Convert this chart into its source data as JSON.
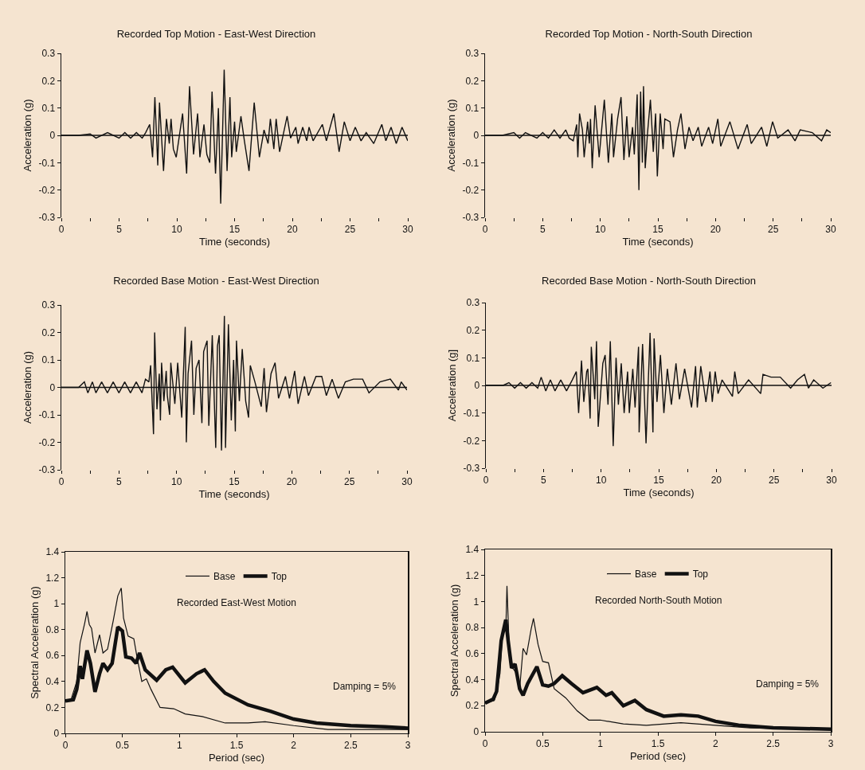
{
  "chart_data": [
    {
      "type": "line",
      "title": "Recorded Top Motion - East-West Direction",
      "xlabel": "Time (seconds)",
      "ylabel": "Acceleration (g)",
      "color": "#111111",
      "grid": false,
      "ref_lines": [
        {
          "axis": "y",
          "value": 0,
          "color": "#111111"
        }
      ],
      "legend": false,
      "marker": "none",
      "xlim": [
        0,
        30
      ],
      "xticks": [
        0,
        {
          "value": 2.5,
          "label": null
        },
        5,
        {
          "value": 7.5,
          "label": null
        },
        10,
        {
          "value": 12.5,
          "label": null
        },
        15,
        {
          "value": 17.5,
          "label": null
        },
        20,
        {
          "value": 22.5,
          "label": null
        },
        25,
        {
          "value": 27.5,
          "label": null
        },
        30
      ],
      "ylim": [
        -0.3,
        0.3
      ],
      "yticks": [
        -0.3,
        -0.2,
        -0.1,
        0,
        0.1,
        0.2,
        0.3
      ],
      "x": [
        0,
        1.5,
        2.5,
        3,
        4,
        5,
        5.5,
        6,
        6.5,
        7,
        7.3,
        7.65,
        7.9,
        8.1,
        8.35,
        8.5,
        8.85,
        9.1,
        9.35,
        9.5,
        9.7,
        9.95,
        10.5,
        10.85,
        11.1,
        11.45,
        11.8,
        12,
        12.35,
        12.6,
        12.85,
        13.05,
        13.35,
        13.6,
        13.8,
        14.1,
        14.35,
        14.6,
        14.75,
        15,
        15.15,
        15.55,
        15.85,
        16.25,
        16.7,
        17.15,
        17.55,
        17.9,
        18.1,
        18.4,
        18.6,
        18.9,
        19.55,
        19.85,
        20.3,
        20.5,
        20.9,
        21.25,
        21.45,
        21.8,
        22.6,
        22.95,
        23.6,
        24.05,
        24.5,
        25,
        25.45,
        25.95,
        26.4,
        27.05,
        27.75,
        28.1,
        28.55,
        29,
        29.5,
        30
      ],
      "values": [
        0,
        0,
        0.005,
        -0.01,
        0.01,
        -0.01,
        0.01,
        -0.01,
        0.01,
        -0.01,
        0.01,
        0.04,
        -0.08,
        0.14,
        -0.11,
        0.12,
        -0.13,
        0.06,
        -0.03,
        0.06,
        -0.05,
        -0.08,
        0.08,
        -0.14,
        0.18,
        -0.07,
        0.08,
        -0.08,
        0.04,
        -0.07,
        -0.1,
        0.16,
        -0.14,
        0.1,
        -0.25,
        0.24,
        -0.13,
        0.14,
        -0.08,
        0.05,
        -0.06,
        0.07,
        -0.02,
        -0.13,
        0.12,
        -0.08,
        0.02,
        -0.03,
        0.06,
        -0.05,
        0.06,
        -0.06,
        0.07,
        -0.01,
        0.03,
        -0.03,
        0.03,
        -0.02,
        0.03,
        -0.02,
        0.04,
        -0.02,
        0.08,
        -0.06,
        0.05,
        -0.02,
        0.03,
        -0.02,
        0.01,
        -0.03,
        0.04,
        -0.02,
        0.03,
        -0.03,
        0.03,
        -0.02
      ]
    },
    {
      "type": "line",
      "title": "Recorded Top Motion - North-South Direction",
      "xlabel": "Time (seconds)",
      "ylabel": "Acceleration (g)",
      "color": "#111111",
      "grid": false,
      "ref_lines": [
        {
          "axis": "y",
          "value": 0,
          "color": "#111111"
        }
      ],
      "legend": false,
      "marker": "none",
      "xlim": [
        0,
        30
      ],
      "xticks": [
        0,
        {
          "value": 2.5,
          "label": null
        },
        5,
        {
          "value": 7.5,
          "label": null
        },
        10,
        {
          "value": 12.5,
          "label": null
        },
        15,
        {
          "value": 17.5,
          "label": null
        },
        20,
        {
          "value": 22.5,
          "label": null
        },
        25,
        {
          "value": 27.5,
          "label": null
        },
        30
      ],
      "ylim": [
        -0.3,
        0.3
      ],
      "yticks": [
        -0.3,
        -0.2,
        -0.1,
        0,
        0.1,
        0.2,
        0.3
      ],
      "x": [
        0,
        1.5,
        2.5,
        3,
        3.5,
        4.5,
        5,
        5.5,
        6,
        6.5,
        7,
        7.3,
        7.65,
        7.95,
        8.05,
        8.2,
        8.45,
        8.6,
        8.9,
        9.05,
        9.15,
        9.3,
        9.55,
        9.9,
        10.35,
        10.7,
        11,
        11.15,
        11.5,
        11.8,
        12.05,
        12.3,
        12.5,
        12.8,
        12.95,
        13.2,
        13.35,
        13.5,
        13.65,
        13.75,
        13.9,
        14.1,
        14.35,
        14.6,
        14.8,
        14.95,
        15.2,
        15.45,
        15.6,
        16.05,
        16.35,
        16.7,
        17,
        17.35,
        17.7,
        18.05,
        18.5,
        18.8,
        19.4,
        19.75,
        20.2,
        20.45,
        21.25,
        21.95,
        22.75,
        23.1,
        24,
        24.45,
        24.95,
        25.4,
        26.3,
        26.9,
        27.35,
        28.4,
        29.2,
        29.65,
        30
      ],
      "values": [
        0,
        0,
        0.01,
        -0.01,
        0.01,
        -0.01,
        0.01,
        -0.01,
        0.02,
        -0.01,
        0.02,
        -0.01,
        -0.02,
        0.04,
        -0.08,
        0.08,
        0.02,
        -0.08,
        0.05,
        -0.03,
        0.06,
        -0.12,
        0.11,
        -0.08,
        0.13,
        -0.1,
        0.08,
        -0.08,
        0.06,
        0.14,
        -0.09,
        0.07,
        -0.08,
        0.03,
        -0.07,
        0.15,
        -0.2,
        0.16,
        -0.1,
        0.18,
        -0.12,
        0.01,
        0.13,
        -0.06,
        0.08,
        -0.15,
        0.08,
        -0.05,
        0.06,
        0.05,
        -0.08,
        0.02,
        0.08,
        -0.05,
        0.03,
        -0.02,
        0.03,
        -0.04,
        0.03,
        -0.03,
        0.06,
        -0.04,
        0.05,
        -0.05,
        0.04,
        -0.03,
        0.03,
        -0.04,
        0.05,
        -0.01,
        0.02,
        -0.02,
        0.02,
        0.01,
        -0.02,
        0.02,
        0.01
      ]
    },
    {
      "type": "line",
      "title": "Recorded Base Motion - East-West Direction",
      "xlabel": "Time (seconds)",
      "ylabel": "Acceleration (g)",
      "color": "#111111",
      "grid": false,
      "ref_lines": [
        {
          "axis": "y",
          "value": 0,
          "color": "#111111"
        }
      ],
      "legend": false,
      "marker": "none",
      "xlim": [
        0,
        30
      ],
      "xticks": [
        0,
        {
          "value": 2.5,
          "label": null
        },
        5,
        {
          "value": 7.5,
          "label": null
        },
        10,
        {
          "value": 12.5,
          "label": null
        },
        15,
        {
          "value": 17.5,
          "label": null
        },
        20,
        {
          "value": 22.5,
          "label": null
        },
        25,
        {
          "value": 27.5,
          "label": null
        },
        30
      ],
      "ylim": [
        -0.3,
        0.3
      ],
      "yticks": [
        -0.3,
        -0.2,
        -0.1,
        0,
        0.1,
        0.2,
        0.3
      ],
      "x": [
        0,
        1.5,
        2,
        2.3,
        2.7,
        3,
        3.5,
        4,
        4.5,
        5,
        5.5,
        6,
        6.5,
        7,
        7.3,
        7.6,
        7.75,
        8,
        8.1,
        8.3,
        8.5,
        8.6,
        8.7,
        8.9,
        9.1,
        9.2,
        9.4,
        9.5,
        9.85,
        10.1,
        10.45,
        10.75,
        10.85,
        11,
        11.3,
        11.5,
        11.7,
        11.95,
        12.2,
        12.35,
        12.65,
        12.8,
        13.1,
        13.4,
        13.55,
        13.7,
        13.9,
        14.15,
        14.25,
        14.5,
        14.75,
        14.95,
        15.1,
        15.2,
        15.45,
        15.7,
        16,
        16.25,
        16.4,
        16.8,
        17.35,
        17.6,
        17.8,
        18.2,
        18.55,
        18.85,
        19.45,
        19.8,
        20.25,
        20.55,
        21.1,
        21.45,
        22.1,
        22.6,
        23,
        23.5,
        24.05,
        24.65,
        25.35,
        26.15,
        26.7,
        27.65,
        28.55,
        29.25,
        29.5,
        30
      ],
      "values": [
        0,
        0,
        0.02,
        -0.02,
        0.02,
        -0.02,
        0.02,
        -0.02,
        0.02,
        -0.02,
        0.02,
        -0.02,
        0.02,
        -0.02,
        0.03,
        0.02,
        0.08,
        -0.17,
        0.2,
        -0.08,
        0.05,
        -0.12,
        0.09,
        -0.05,
        0.06,
        -0.03,
        -0.1,
        0.09,
        -0.06,
        0.09,
        -0.11,
        0.22,
        -0.2,
        0.05,
        0.17,
        -0.1,
        0.07,
        0.1,
        -0.13,
        0.13,
        0.17,
        -0.14,
        0.19,
        -0.22,
        0.15,
        0.19,
        -0.23,
        0.26,
        -0.22,
        0.23,
        -0.12,
        0.1,
        -0.16,
        0.17,
        -0.05,
        0.14,
        -0.05,
        -0.11,
        0.08,
        0.02,
        -0.07,
        0.07,
        -0.09,
        0.05,
        0.09,
        -0.04,
        0.04,
        -0.04,
        0.06,
        -0.06,
        0.04,
        -0.03,
        0.04,
        0.04,
        -0.03,
        0.03,
        -0.04,
        0.02,
        0.03,
        0.03,
        -0.02,
        0.02,
        0.03,
        -0.01,
        0.02,
        -0.01
      ]
    },
    {
      "type": "line",
      "title": "Recorded Base Motion - North-South Direction",
      "xlabel": "Time (seconds)",
      "ylabel": "Acceleration (g]",
      "color": "#111111",
      "grid": false,
      "ref_lines": [
        {
          "axis": "y",
          "value": 0,
          "color": "#111111"
        }
      ],
      "legend": false,
      "marker": "none",
      "xlim": [
        0,
        30
      ],
      "xticks": [
        0,
        {
          "value": 2.5,
          "label": null
        },
        5,
        {
          "value": 7.5,
          "label": null
        },
        10,
        {
          "value": 12.5,
          "label": null
        },
        15,
        {
          "value": 17.5,
          "label": null
        },
        20,
        {
          "value": 22.5,
          "label": null
        },
        25,
        {
          "value": 27.5,
          "label": null
        },
        30
      ],
      "ylim": [
        -0.3,
        0.3
      ],
      "yticks": [
        -0.3,
        -0.2,
        -0.1,
        0,
        0.1,
        0.2,
        0.3
      ],
      "x": [
        0,
        1.5,
        2,
        2.5,
        3,
        3.5,
        4,
        4.5,
        4.8,
        5.2,
        5.6,
        6,
        6.5,
        7,
        7.5,
        7.85,
        8.05,
        8.3,
        8.5,
        8.75,
        8.85,
        9.05,
        9.15,
        9.45,
        9.6,
        9.75,
        10.15,
        10.35,
        10.6,
        10.8,
        11.05,
        11.3,
        11.5,
        11.75,
        12,
        12.3,
        12.45,
        12.75,
        12.95,
        13.25,
        13.3,
        13.6,
        13.9,
        14.25,
        14.5,
        14.6,
        14.85,
        15.15,
        15.45,
        15.75,
        16.1,
        16.5,
        16.8,
        17.25,
        17.85,
        18.2,
        18.35,
        18.65,
        19.1,
        19.45,
        19.65,
        19.9,
        20.15,
        20.5,
        21.4,
        21.6,
        21.9,
        22.8,
        23.85,
        24.05,
        24.75,
        25.55,
        26.45,
        27.05,
        27.65,
        28,
        28.45,
        29.25,
        29.95
      ],
      "values": [
        0,
        0,
        0.01,
        -0.01,
        0.01,
        -0.01,
        0.01,
        -0.01,
        0.03,
        -0.02,
        0.02,
        -0.02,
        0.02,
        -0.02,
        0.02,
        0.05,
        -0.1,
        0.09,
        -0.06,
        0.05,
        0.06,
        -0.12,
        0.14,
        -0.05,
        0.16,
        -0.15,
        0.08,
        0.11,
        -0.07,
        0.16,
        -0.22,
        0.1,
        -0.07,
        0.08,
        -0.1,
        0.05,
        -0.1,
        0.06,
        -0.08,
        0.14,
        -0.17,
        0.15,
        -0.21,
        0.19,
        -0.17,
        0.17,
        -0.06,
        0.11,
        -0.1,
        0.06,
        -0.07,
        0.08,
        -0.05,
        0.06,
        -0.08,
        0.07,
        -0.08,
        0.07,
        -0.06,
        0.05,
        -0.06,
        0.05,
        -0.03,
        0.02,
        -0.04,
        0.05,
        -0.03,
        0.02,
        -0.03,
        0.04,
        0.03,
        0.03,
        -0.01,
        0.02,
        0.04,
        -0.01,
        0.02,
        -0.01,
        0.01
      ]
    },
    {
      "type": "line",
      "xlabel": "Period (sec)",
      "ylabel": "Spectral Acceleration (g)",
      "grid": false,
      "legend": "top",
      "marker": "none",
      "xlim": [
        0,
        3
      ],
      "xticks": [
        0,
        0.5,
        1,
        1.5,
        2,
        2.5,
        3
      ],
      "ylim": [
        0,
        1.4
      ],
      "yticks": [
        0,
        0.2,
        0.4,
        0.6,
        0.8,
        1,
        1.2,
        1.4
      ],
      "annotations": [
        "Recorded East-West Motion",
        "Damping = 5%"
      ],
      "series": [
        {
          "name": "Base",
          "color": "#111111",
          "x": [
            0,
            0.05,
            0.1,
            0.13,
            0.17,
            0.19,
            0.21,
            0.23,
            0.26,
            0.3,
            0.33,
            0.37,
            0.42,
            0.46,
            0.49,
            0.51,
            0.55,
            0.6,
            0.63,
            0.67,
            0.71,
            0.75,
            0.83,
            0.95,
            1.05,
            1.2,
            1.4,
            1.6,
            1.75,
            2,
            2.3,
            2.6,
            3
          ],
          "values": [
            0.25,
            0.26,
            0.4,
            0.7,
            0.85,
            0.94,
            0.84,
            0.81,
            0.62,
            0.76,
            0.62,
            0.65,
            0.87,
            1.06,
            1.12,
            0.89,
            0.75,
            0.73,
            0.58,
            0.4,
            0.42,
            0.34,
            0.2,
            0.19,
            0.15,
            0.13,
            0.08,
            0.08,
            0.09,
            0.06,
            0.03,
            0.03,
            0.03
          ]
        },
        {
          "name": "Top",
          "color": "#111111",
          "x": [
            0,
            0.07,
            0.1,
            0.13,
            0.15,
            0.19,
            0.22,
            0.26,
            0.3,
            0.33,
            0.37,
            0.41,
            0.46,
            0.5,
            0.53,
            0.58,
            0.62,
            0.65,
            0.7,
            0.8,
            0.88,
            0.94,
            1.05,
            1.15,
            1.22,
            1.3,
            1.4,
            1.6,
            1.8,
            2,
            2.2,
            2.5,
            2.8,
            3
          ],
          "values": [
            0.25,
            0.26,
            0.34,
            0.52,
            0.42,
            0.64,
            0.54,
            0.32,
            0.46,
            0.54,
            0.49,
            0.54,
            0.82,
            0.79,
            0.59,
            0.58,
            0.54,
            0.62,
            0.49,
            0.41,
            0.49,
            0.51,
            0.39,
            0.46,
            0.49,
            0.4,
            0.31,
            0.22,
            0.17,
            0.11,
            0.08,
            0.06,
            0.05,
            0.04
          ]
        }
      ]
    },
    {
      "type": "line",
      "xlabel": "Period (sec)",
      "ylabel": "Spectral Acceleration (g)",
      "grid": false,
      "legend": "top",
      "marker": "none",
      "xlim": [
        0,
        3
      ],
      "xticks": [
        0,
        0.5,
        1,
        1.5,
        2,
        2.5,
        3
      ],
      "ylim": [
        0,
        1.4
      ],
      "yticks": [
        0,
        0.2,
        0.4,
        0.6,
        0.8,
        1,
        1.2,
        1.4
      ],
      "annotations": [
        "Recorded North-South Motion",
        "Damping = 5%"
      ],
      "series": [
        {
          "name": "Base",
          "color": "#111111",
          "x": [
            0,
            0.08,
            0.1,
            0.13,
            0.15,
            0.18,
            0.19,
            0.21,
            0.24,
            0.27,
            0.3,
            0.33,
            0.36,
            0.4,
            0.42,
            0.46,
            0.5,
            0.55,
            0.6,
            0.7,
            0.8,
            0.9,
            1,
            1.2,
            1.4,
            1.7,
            2,
            2.3,
            3
          ],
          "values": [
            0.22,
            0.24,
            0.3,
            0.45,
            0.75,
            0.78,
            1.12,
            0.63,
            0.49,
            0.45,
            0.33,
            0.64,
            0.59,
            0.79,
            0.87,
            0.67,
            0.54,
            0.53,
            0.33,
            0.26,
            0.16,
            0.09,
            0.09,
            0.06,
            0.05,
            0.07,
            0.05,
            0.03,
            0.02
          ]
        },
        {
          "name": "Top",
          "color": "#111111",
          "x": [
            0,
            0.07,
            0.1,
            0.14,
            0.18,
            0.2,
            0.23,
            0.26,
            0.3,
            0.33,
            0.37,
            0.45,
            0.5,
            0.55,
            0.6,
            0.67,
            0.75,
            0.85,
            0.97,
            1.05,
            1.1,
            1.2,
            1.3,
            1.4,
            1.55,
            1.7,
            1.85,
            2,
            2.2,
            2.5,
            3
          ],
          "values": [
            0.22,
            0.25,
            0.31,
            0.7,
            0.86,
            0.7,
            0.49,
            0.52,
            0.33,
            0.28,
            0.37,
            0.5,
            0.36,
            0.35,
            0.37,
            0.43,
            0.37,
            0.3,
            0.34,
            0.28,
            0.3,
            0.2,
            0.24,
            0.17,
            0.12,
            0.13,
            0.12,
            0.08,
            0.05,
            0.03,
            0.02
          ]
        }
      ]
    }
  ]
}
